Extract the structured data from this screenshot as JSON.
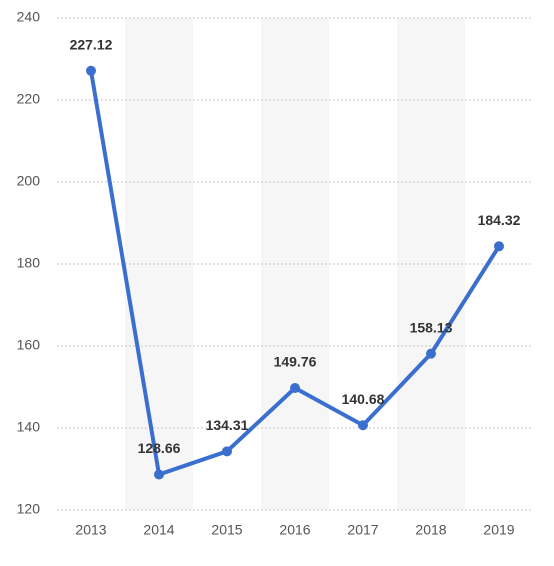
{
  "chart_data": {
    "type": "line",
    "categories": [
      "2013",
      "2014",
      "2015",
      "2016",
      "2017",
      "2018",
      "2019"
    ],
    "values": [
      227.12,
      128.66,
      134.31,
      149.76,
      140.68,
      158.13,
      184.32
    ],
    "color": "#3b6fcf",
    "ylim": [
      120,
      240
    ],
    "yticks": [
      120,
      140,
      160,
      180,
      200,
      220,
      240
    ],
    "grid": true
  }
}
